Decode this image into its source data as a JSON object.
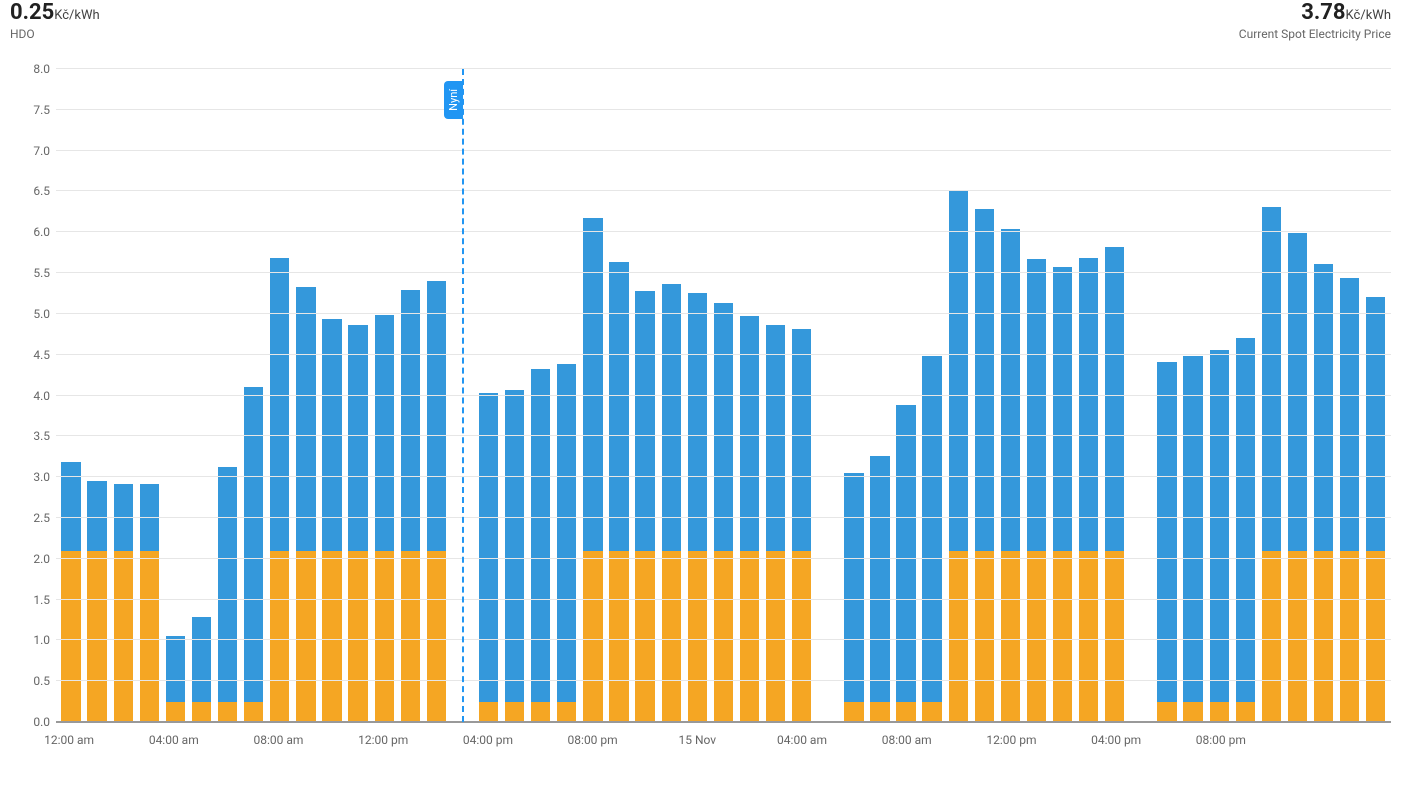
{
  "header": {
    "left": {
      "value": "0.25",
      "unit": "Kč/kWh",
      "label": "HDO"
    },
    "right": {
      "value": "3.78",
      "unit": "Kč/kWh",
      "label": "Current Spot Electricity Price"
    }
  },
  "chart": {
    "type": "bar",
    "ylim": [
      0.0,
      8.0
    ],
    "ytick_step": 0.5,
    "yticks": [
      "0.0",
      "0.5",
      "1.0",
      "1.5",
      "2.0",
      "2.5",
      "3.0",
      "3.5",
      "4.0",
      "4.5",
      "5.0",
      "5.5",
      "6.0",
      "6.5",
      "7.0",
      "7.5",
      "8.0"
    ],
    "bar_width": 0.74,
    "colors": {
      "series_a": "#f5a623",
      "series_b": "#3498db",
      "grid": "#e6e6e6",
      "axis": "#999999",
      "background": "#ffffff",
      "now_line": "#2196f3",
      "now_badge_bg": "#2196f3",
      "now_badge_fg": "#ffffff",
      "text": "#666666",
      "header_text": "#212121"
    },
    "fontsize": {
      "ytick": 12,
      "xtick": 12,
      "header_value": 22,
      "header_unit": 13,
      "header_label": 12
    },
    "now": {
      "index": 15,
      "label": "Nyní"
    },
    "xticks": [
      {
        "pos": 0,
        "label": "12:00 am"
      },
      {
        "pos": 4,
        "label": "04:00 am"
      },
      {
        "pos": 8,
        "label": "08:00 am"
      },
      {
        "pos": 12,
        "label": "12:00 pm"
      },
      {
        "pos": 16,
        "label": "04:00 pm"
      },
      {
        "pos": 20,
        "label": "08:00 pm"
      },
      {
        "pos": 24,
        "label": "15 Nov"
      },
      {
        "pos": 28,
        "label": "04:00 am"
      },
      {
        "pos": 32,
        "label": "08:00 am"
      },
      {
        "pos": 36,
        "label": "12:00 pm"
      },
      {
        "pos": 40,
        "label": "04:00 pm"
      },
      {
        "pos": 44,
        "label": "08:00 pm"
      }
    ],
    "series": [
      {
        "a": 2.1,
        "b": 1.08
      },
      {
        "a": 2.1,
        "b": 0.85
      },
      {
        "a": 2.1,
        "b": 0.82
      },
      {
        "a": 2.1,
        "b": 0.82
      },
      {
        "a": 0.25,
        "b": 0.8
      },
      {
        "a": 0.25,
        "b": 1.04
      },
      {
        "a": 0.25,
        "b": 2.88
      },
      {
        "a": 0.25,
        "b": 3.85
      },
      {
        "a": 2.1,
        "b": 3.59
      },
      {
        "a": 2.1,
        "b": 3.23
      },
      {
        "a": 2.1,
        "b": 2.84
      },
      {
        "a": 2.1,
        "b": 2.77
      },
      {
        "a": 2.1,
        "b": 2.89
      },
      {
        "a": 2.1,
        "b": 3.19
      },
      {
        "a": 2.1,
        "b": 3.3
      },
      null,
      {
        "a": 0.25,
        "b": 3.78
      },
      {
        "a": 0.25,
        "b": 3.82
      },
      {
        "a": 0.25,
        "b": 4.07
      },
      {
        "a": 0.25,
        "b": 4.14
      },
      {
        "a": 2.1,
        "b": 4.08
      },
      {
        "a": 2.1,
        "b": 3.54
      },
      {
        "a": 2.1,
        "b": 3.18
      },
      {
        "a": 2.1,
        "b": 3.27
      },
      {
        "a": 2.1,
        "b": 3.16
      },
      {
        "a": 2.1,
        "b": 3.03
      },
      {
        "a": 2.1,
        "b": 2.88
      },
      {
        "a": 2.1,
        "b": 2.77
      },
      {
        "a": 2.1,
        "b": 2.71
      },
      null,
      {
        "a": 0.25,
        "b": 2.8
      },
      {
        "a": 0.25,
        "b": 3.01
      },
      {
        "a": 0.25,
        "b": 3.63
      },
      {
        "a": 0.25,
        "b": 4.24
      },
      {
        "a": 2.1,
        "b": 4.41
      },
      {
        "a": 2.1,
        "b": 4.19
      },
      {
        "a": 2.1,
        "b": 3.94
      },
      {
        "a": 2.1,
        "b": 3.57
      },
      {
        "a": 2.1,
        "b": 3.48
      },
      {
        "a": 2.1,
        "b": 3.59
      },
      {
        "a": 2.1,
        "b": 3.72
      },
      null,
      {
        "a": 0.25,
        "b": 4.16
      },
      {
        "a": 0.25,
        "b": 4.24
      },
      {
        "a": 0.25,
        "b": 4.31
      },
      {
        "a": 0.25,
        "b": 4.45
      },
      {
        "a": 2.1,
        "b": 4.21
      },
      {
        "a": 2.1,
        "b": 3.89
      },
      {
        "a": 2.1,
        "b": 3.51
      },
      {
        "a": 2.1,
        "b": 3.34
      },
      {
        "a": 2.1,
        "b": 3.11
      }
    ]
  }
}
